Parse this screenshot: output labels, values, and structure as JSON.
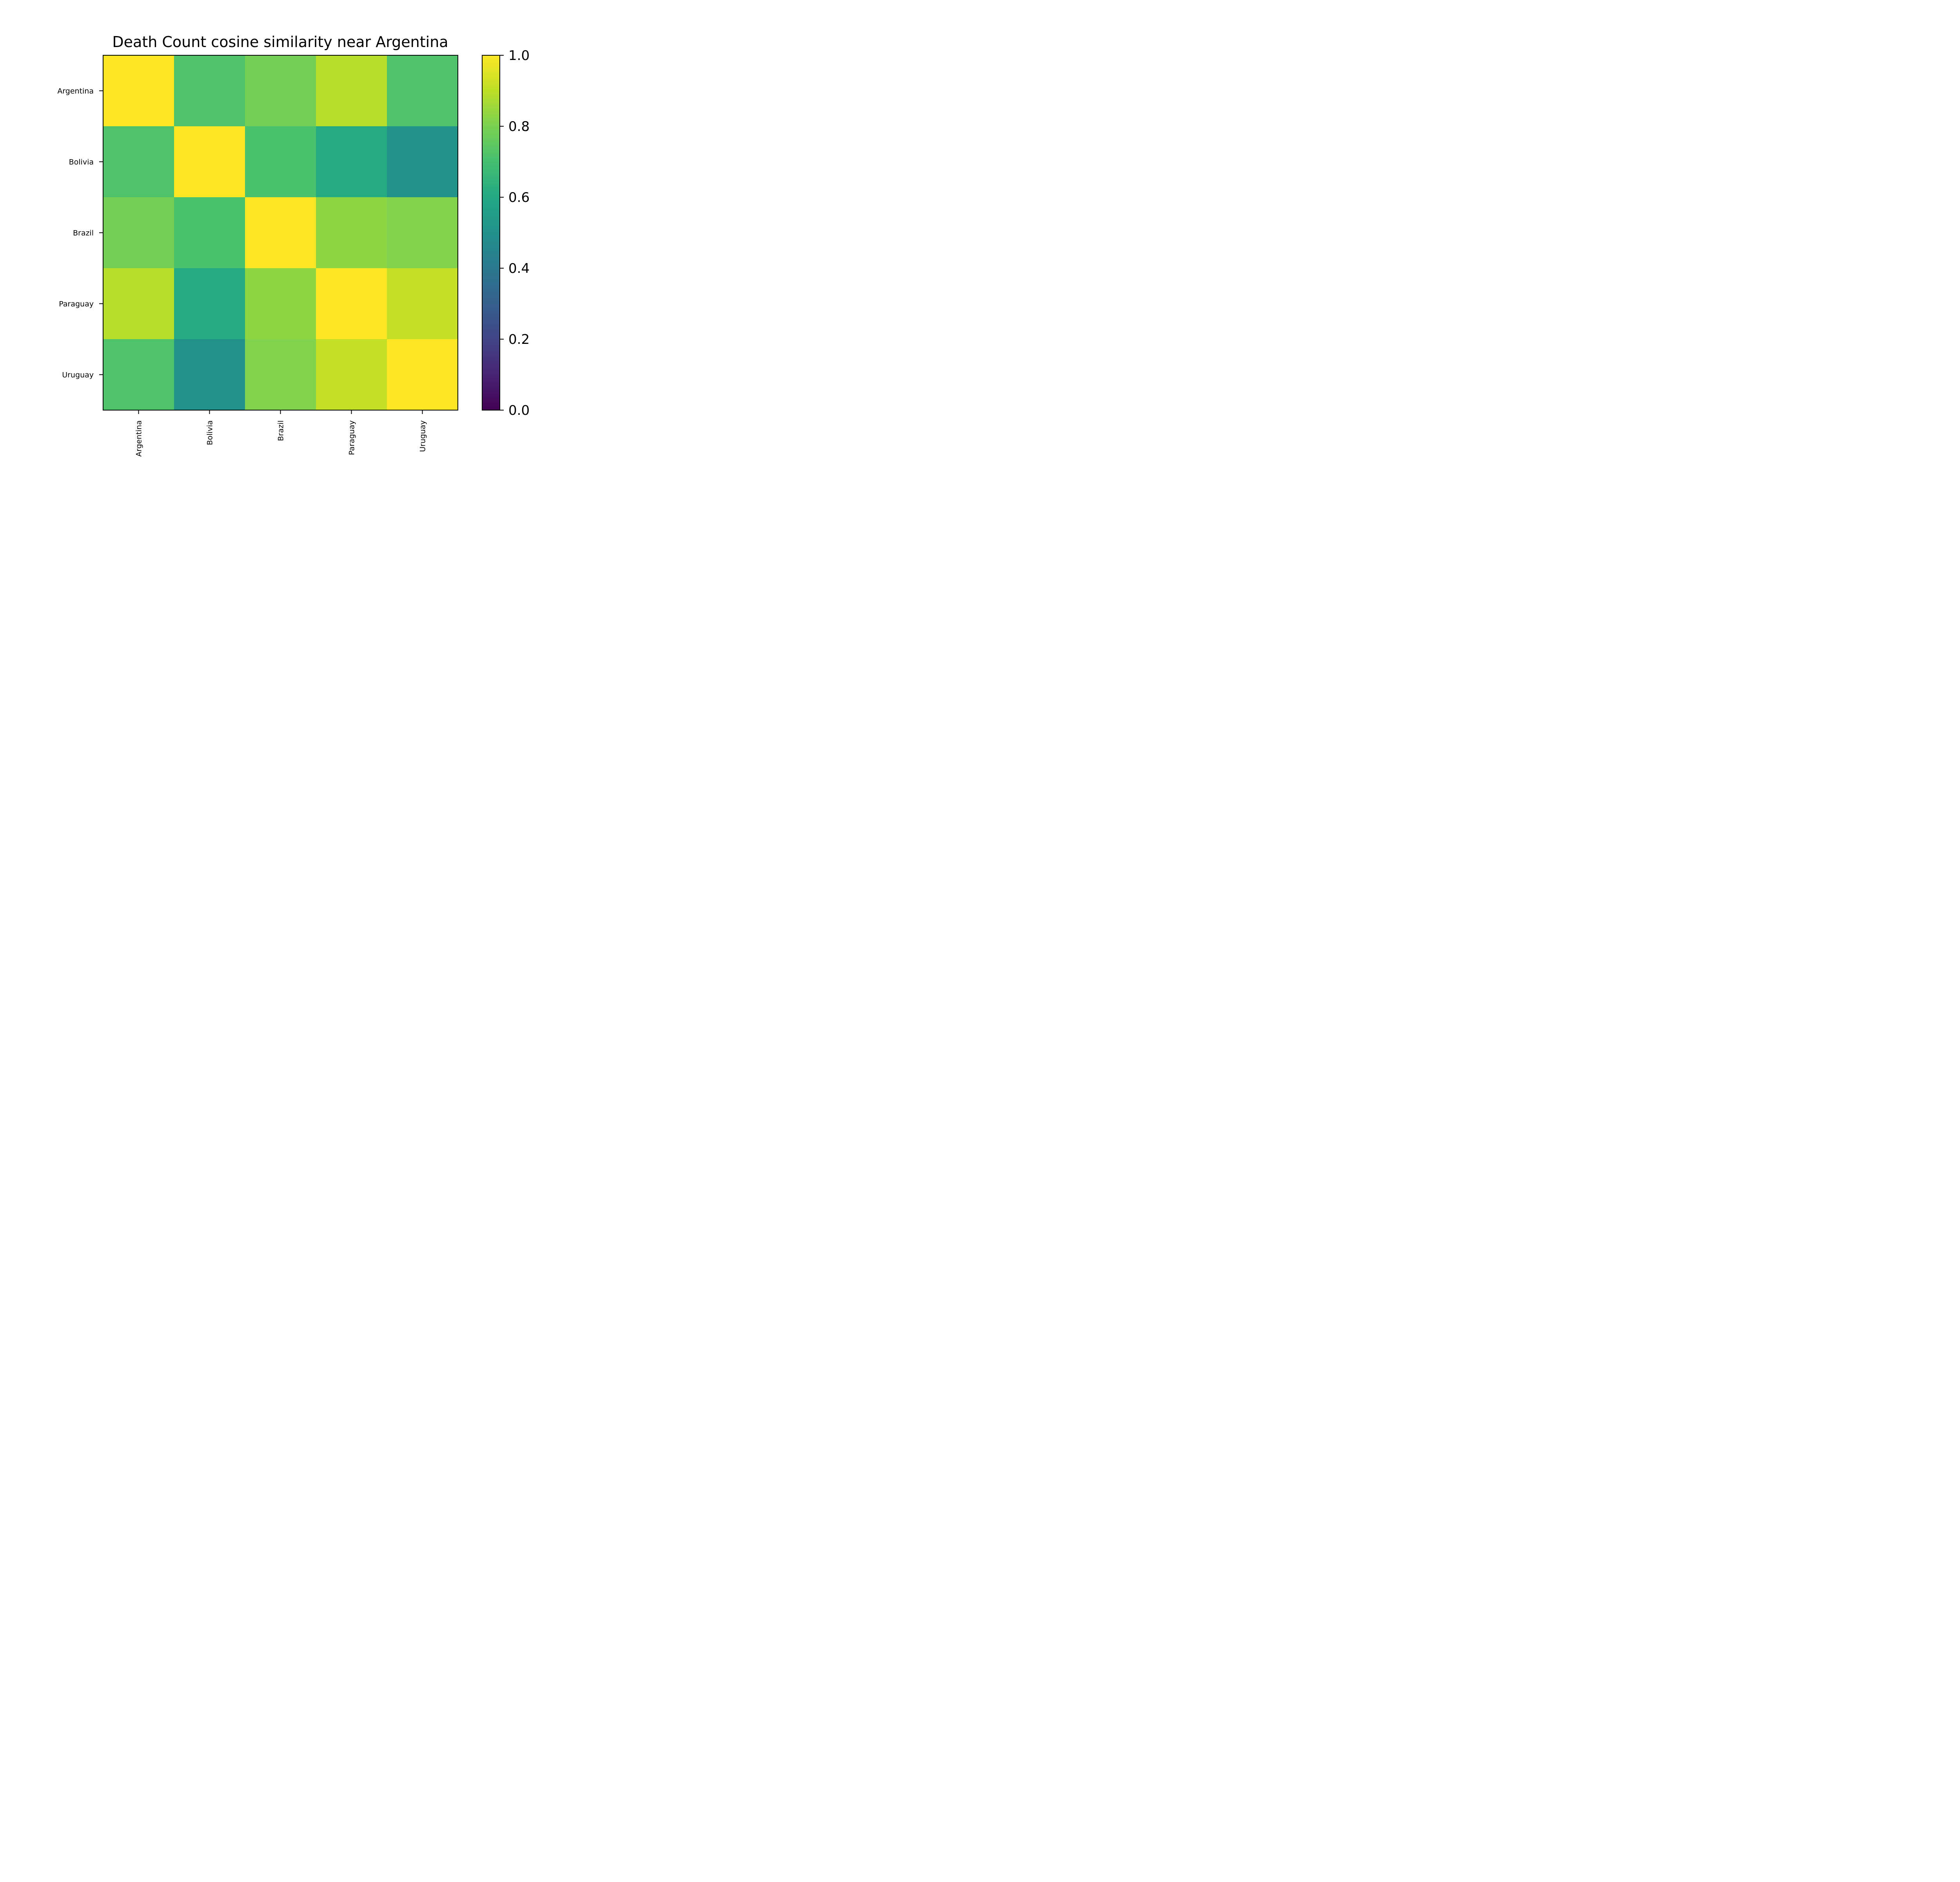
{
  "chart_data": {
    "type": "heatmap",
    "title": "Death Count cosine similarity near Argentina",
    "xlabel": "",
    "ylabel": "",
    "rows": [
      "Argentina",
      "Bolivia",
      "Brazil",
      "Paraguay",
      "Uruguay"
    ],
    "columns": [
      "Argentina",
      "Bolivia",
      "Brazil",
      "Paraguay",
      "Uruguay"
    ],
    "values": [
      [
        1.0,
        0.72,
        0.79,
        0.89,
        0.72
      ],
      [
        0.72,
        1.0,
        0.71,
        0.61,
        0.51
      ],
      [
        0.79,
        0.71,
        1.0,
        0.83,
        0.81
      ],
      [
        0.89,
        0.61,
        0.83,
        1.0,
        0.91
      ],
      [
        0.72,
        0.51,
        0.81,
        0.91,
        1.0
      ]
    ],
    "colormap": "viridis",
    "vmin": 0.0,
    "vmax": 1.0,
    "colorbar_ticks": [
      "0.0",
      "0.2",
      "0.4",
      "0.6",
      "0.8",
      "1.0"
    ],
    "grid": false
  }
}
